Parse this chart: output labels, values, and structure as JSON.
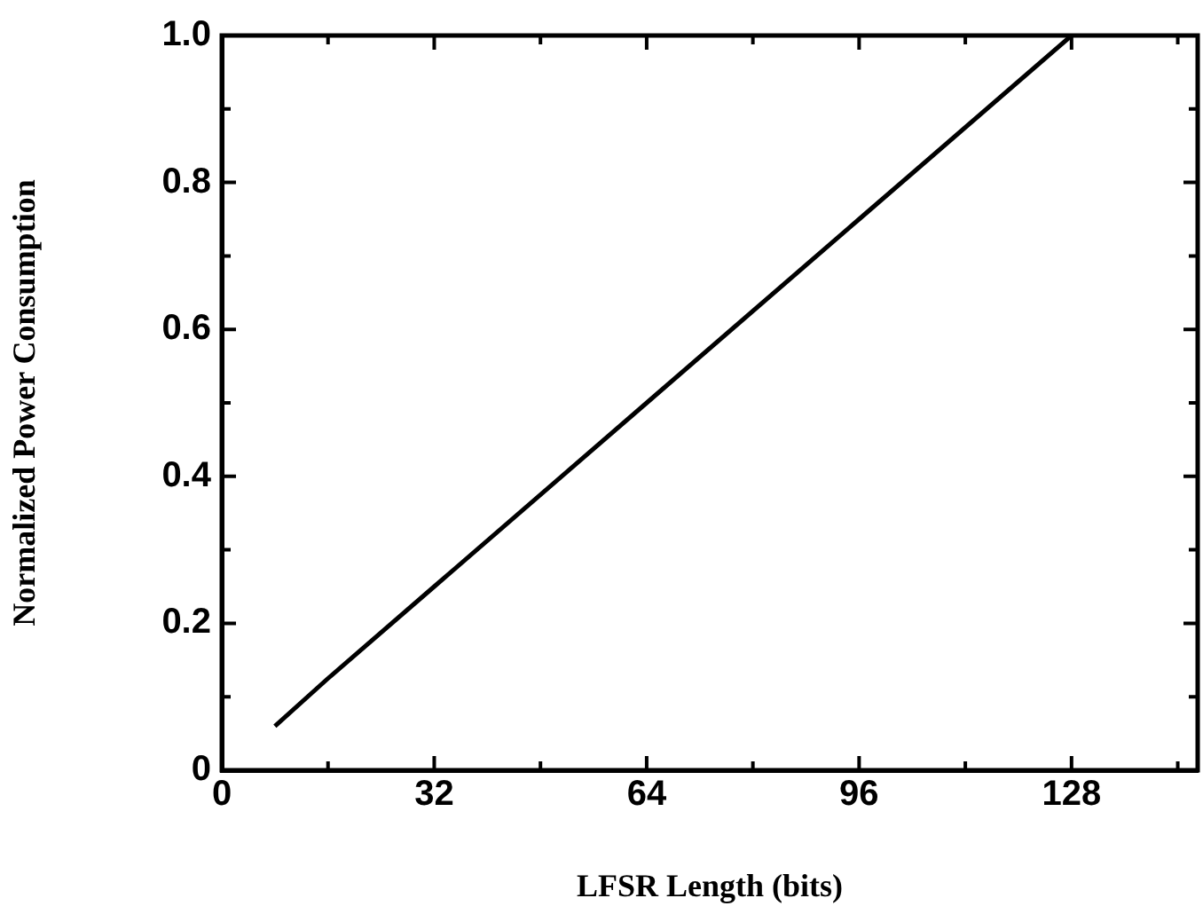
{
  "chart_data": {
    "type": "line",
    "xlabel": "LFSR Length (bits)",
    "ylabel": "Normalized Power Consumption",
    "x": [
      8,
      16,
      32,
      64,
      96,
      128
    ],
    "series": [
      {
        "color": "#000000",
        "values": [
          0.06,
          0.125,
          0.25,
          0.5,
          0.75,
          1.0
        ]
      }
    ],
    "xlim": [
      0,
      147
    ],
    "xticks": [
      0,
      {
        "value": 16,
        "label": null
      },
      32,
      {
        "value": 48,
        "label": null
      },
      64,
      {
        "value": 80,
        "label": null
      },
      96,
      {
        "value": 112,
        "label": null
      },
      128,
      {
        "value": 144,
        "label": null
      }
    ],
    "ylim": [
      0,
      1
    ],
    "yticks": [
      0,
      {
        "value": 0.1,
        "label": null
      },
      0.2,
      {
        "value": 0.3,
        "label": null
      },
      0.4,
      {
        "value": 0.5,
        "label": null
      },
      0.6,
      {
        "value": 0.7,
        "label": null
      },
      0.8,
      {
        "value": 0.9,
        "label": null
      },
      {
        "value": 1,
        "label": "1.0"
      }
    ],
    "grid": false,
    "legend": false,
    "marker": "none",
    "line_style": "solid"
  }
}
